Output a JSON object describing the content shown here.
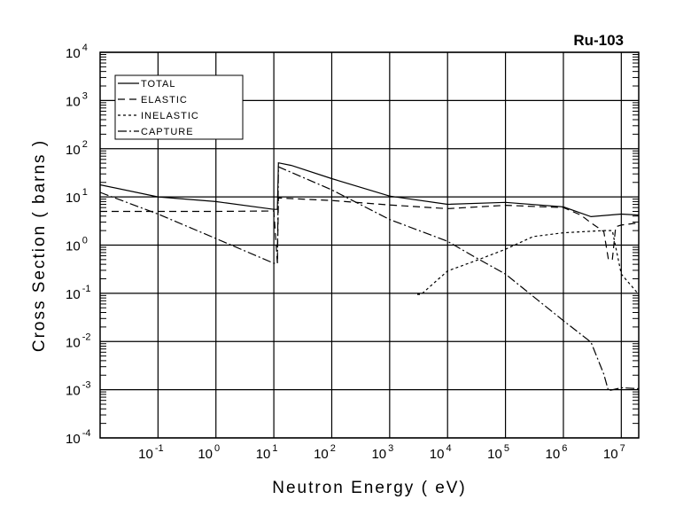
{
  "chart_data": {
    "type": "line",
    "title": "Ru-103",
    "xlabel": "Neutron Energy (  eV)",
    "ylabel": "Cross Section ( barns )",
    "xscale": "log",
    "yscale": "log",
    "xlim": [
      0.01,
      20000000
    ],
    "ylim": [
      0.0001,
      10000
    ],
    "grid": true,
    "legend_position": "top-left",
    "x_ticks": [
      {
        "base": "10",
        "exp": "-1",
        "value": 0.1
      },
      {
        "base": "10",
        "exp": "0",
        "value": 1
      },
      {
        "base": "10",
        "exp": "1",
        "value": 10
      },
      {
        "base": "10",
        "exp": "2",
        "value": 100
      },
      {
        "base": "10",
        "exp": "3",
        "value": 1000
      },
      {
        "base": "10",
        "exp": "4",
        "value": 10000
      },
      {
        "base": "10",
        "exp": "5",
        "value": 100000
      },
      {
        "base": "10",
        "exp": "6",
        "value": 1000000
      },
      {
        "base": "10",
        "exp": "7",
        "value": 10000000
      }
    ],
    "y_ticks": [
      {
        "base": "10",
        "exp": "4",
        "value": 10000
      },
      {
        "base": "10",
        "exp": "3",
        "value": 1000
      },
      {
        "base": "10",
        "exp": "2",
        "value": 100
      },
      {
        "base": "10",
        "exp": "1",
        "value": 10
      },
      {
        "base": "10",
        "exp": "0",
        "value": 1
      },
      {
        "base": "10",
        "exp": "-1",
        "value": 0.1
      },
      {
        "base": "10",
        "exp": "-2",
        "value": 0.01
      },
      {
        "base": "10",
        "exp": "-3",
        "value": 0.001
      },
      {
        "base": "10",
        "exp": "-4",
        "value": 0.0001
      }
    ],
    "series": [
      {
        "name": "TOTAL",
        "dash": "none",
        "x": [
          0.01,
          0.1,
          1,
          10,
          11.5,
          12,
          20,
          100,
          1000,
          10000,
          100000,
          1000000,
          3000000,
          10000000,
          20000000
        ],
        "y": [
          17.8,
          10,
          8,
          5.5,
          5.5,
          51,
          45,
          24,
          10.4,
          7.0,
          7.7,
          6.2,
          3.9,
          4.4,
          4.2
        ]
      },
      {
        "name": "ELASTIC",
        "dash": "8,5",
        "x": [
          0.01,
          0.1,
          1,
          10,
          11.5,
          12,
          100,
          1000,
          10000,
          100000,
          1000000,
          2000000,
          3000000,
          5000000,
          6000000,
          7000000,
          8000000,
          10000000,
          20000000
        ],
        "y": [
          5.0,
          5.0,
          5.0,
          5.1,
          0.42,
          9.5,
          8.4,
          6.8,
          5.7,
          6.7,
          6.0,
          4.2,
          2.9,
          1.9,
          0.5,
          0.5,
          2.4,
          2.6,
          2.9
        ]
      },
      {
        "name": "INELASTIC",
        "dash": "3,3",
        "x": [
          3000,
          3500,
          10000,
          30000,
          100000,
          300000,
          1000000,
          5000000,
          7000000,
          10000000,
          20000000
        ],
        "y": [
          0.095,
          0.095,
          0.29,
          0.47,
          0.82,
          1.5,
          1.8,
          2.0,
          2.0,
          0.25,
          0.095
        ]
      },
      {
        "name": "CAPTURE",
        "dash": "10,3,2,3",
        "x": [
          0.01,
          0.1,
          1,
          10,
          11.5,
          12,
          100,
          1000,
          10000,
          30000,
          100000,
          1000000,
          3000000,
          5000000,
          6000000,
          10000000,
          20000000
        ],
        "y": [
          12.4,
          4.4,
          1.37,
          0.42,
          0.42,
          42,
          14,
          3.4,
          1.2,
          0.56,
          0.25,
          0.027,
          0.0097,
          0.0021,
          0.00095,
          0.0011,
          0.00105
        ]
      }
    ]
  }
}
